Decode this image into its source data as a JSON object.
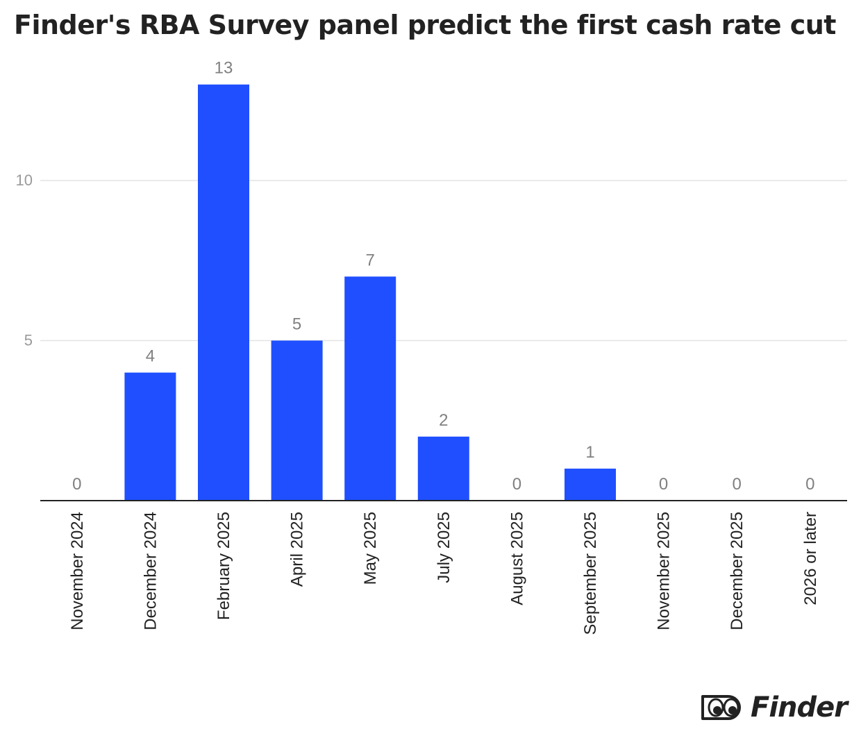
{
  "title": "Finder's RBA Survey panel predict the first cash rate cut",
  "brand": {
    "name": "Finder",
    "logo_icon": "eyes-logo-icon"
  },
  "colors": {
    "bar": "#1f4fff",
    "axis": "#222222",
    "grid": "#e3e3e3",
    "tick_text": "#9a9a9a",
    "label_text": "#808080",
    "category_text": "#222222"
  },
  "chart_data": {
    "type": "bar",
    "title": "Finder's RBA Survey panel predict the first cash rate cut",
    "xlabel": "",
    "ylabel": "",
    "categories": [
      "November 2024",
      "December 2024",
      "February 2025",
      "April 2025",
      "May 2025",
      "July 2025",
      "August 2025",
      "September 2025",
      "November 2025",
      "December 2025",
      "2026 or later"
    ],
    "values": [
      0,
      4,
      13,
      5,
      7,
      2,
      0,
      1,
      0,
      0,
      0
    ],
    "data_labels": [
      "0",
      "4",
      "13",
      "5",
      "7",
      "2",
      "0",
      "1",
      "0",
      "0",
      "0"
    ],
    "yticks": [
      5,
      10
    ],
    "ylim": [
      0,
      13
    ],
    "grid": true,
    "legend": "none",
    "x_tick_rotation": "vertical"
  }
}
